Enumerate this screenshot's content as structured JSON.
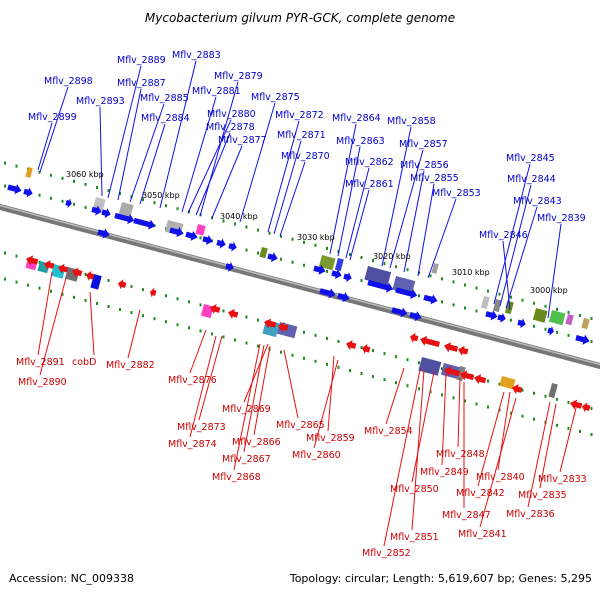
{
  "title": "Mycobacterium gilvum PYR-GCK, complete genome",
  "accession_text": "Accession: NC_009338",
  "summary_text": "Topology: circular; Length: 5,619,607 bp; Genes: 5,295",
  "scale_labels": [
    "3060 kbp",
    "3050 kbp",
    "3040 kbp",
    "3030 kbp",
    "3020 kbp",
    "3010 kbp",
    "3000 kbp"
  ],
  "top_genes": [
    "Mflv_2898",
    "Mflv_2899",
    "Mflv_2893",
    "Mflv_2889",
    "Mflv_2887",
    "Mflv_2885",
    "Mflv_2884",
    "Mflv_2883",
    "Mflv_2881",
    "Mflv_2880",
    "Mflv_2879",
    "Mflv_2878",
    "Mflv_2877",
    "Mflv_2875",
    "Mflv_2872",
    "Mflv_2871",
    "Mflv_2870",
    "Mflv_2864",
    "Mflv_2863",
    "Mflv_2862",
    "Mflv_2861",
    "Mflv_2858",
    "Mflv_2857",
    "Mflv_2856",
    "Mflv_2855",
    "Mflv_2853",
    "Mflv_2845",
    "Mflv_2844",
    "Mflv_2843",
    "Mflv_2846",
    "Mflv_2839"
  ],
  "bottom_genes": [
    "Mflv_2891",
    "Mflv_2890",
    "cobD",
    "Mflv_2882",
    "Mflv_2876",
    "Mflv_2873",
    "Mflv_2874",
    "Mflv_2869",
    "Mflv_2866",
    "Mflv_2867",
    "Mflv_2868",
    "Mflv_2865",
    "Mflv_2859",
    "Mflv_2860",
    "Mflv_2854",
    "Mflv_2848",
    "Mflv_2849",
    "Mflv_2850",
    "Mflv_2851",
    "Mflv_2852",
    "Mflv_2847",
    "Mflv_2842",
    "Mflv_2841",
    "Mflv_2840",
    "Mflv_2835",
    "Mflv_2836",
    "Mflv_2833"
  ],
  "colors": {
    "forward_strand": "#1010e8",
    "reverse_strand": "#e81010",
    "forward_label": "#0000c8",
    "reverse_label": "#c80000",
    "backbone": "#8c8c8c",
    "ticks": "#1f8a1f"
  }
}
